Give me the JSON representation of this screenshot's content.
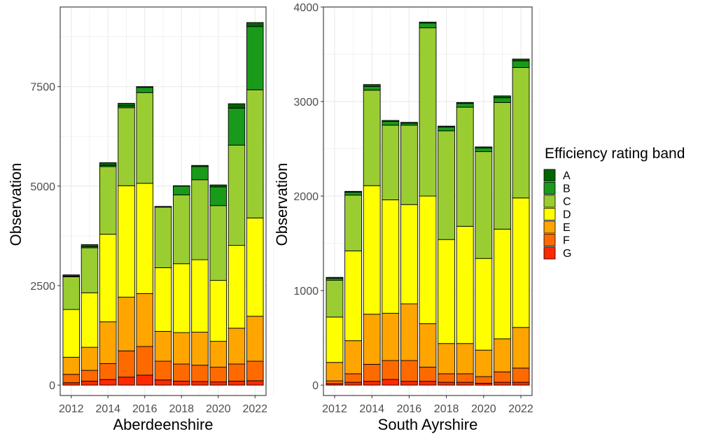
{
  "chart_data": [
    {
      "type": "bar",
      "stacked": true,
      "title": "",
      "xlabel": "Aberdeenshire",
      "ylabel": "Observation",
      "ylim": [
        0,
        9500
      ],
      "yticks": [
        0,
        2500,
        5000,
        7500
      ],
      "xticks": [
        2012,
        2014,
        2016,
        2018,
        2020,
        2022
      ],
      "grid": true,
      "categories": [
        2012,
        2013,
        2014,
        2015,
        2016,
        2017,
        2018,
        2019,
        2020,
        2021,
        2022
      ],
      "series": [
        {
          "name": "G",
          "values": [
            60,
            100,
            140,
            200,
            250,
            130,
            100,
            90,
            80,
            100,
            110
          ]
        },
        {
          "name": "F",
          "values": [
            210,
            270,
            400,
            660,
            720,
            470,
            430,
            410,
            370,
            430,
            490
          ]
        },
        {
          "name": "E",
          "values": [
            430,
            580,
            1050,
            1350,
            1330,
            750,
            790,
            830,
            650,
            900,
            1130
          ]
        },
        {
          "name": "D",
          "values": [
            1200,
            1370,
            2200,
            2800,
            2770,
            1600,
            1730,
            1820,
            1530,
            2080,
            2470
          ]
        },
        {
          "name": "C",
          "values": [
            820,
            1130,
            1700,
            1960,
            2280,
            1520,
            1730,
            2010,
            1880,
            2520,
            3220
          ]
        },
        {
          "name": "B",
          "values": [
            20,
            30,
            30,
            40,
            130,
            10,
            220,
            330,
            470,
            930,
            1590
          ]
        },
        {
          "name": "A",
          "values": [
            30,
            50,
            70,
            70,
            20,
            10,
            10,
            30,
            50,
            110,
            100
          ]
        }
      ]
    },
    {
      "type": "bar",
      "stacked": true,
      "title": "",
      "xlabel": "South Ayrshire",
      "ylabel": "Observation",
      "ylim": [
        0,
        4000
      ],
      "yticks": [
        0,
        1000,
        2000,
        3000,
        4000
      ],
      "xticks": [
        2012,
        2014,
        2016,
        2018,
        2020,
        2022
      ],
      "grid": true,
      "categories": [
        2012,
        2013,
        2014,
        2015,
        2016,
        2017,
        2018,
        2019,
        2020,
        2021,
        2022
      ],
      "series": [
        {
          "name": "G",
          "values": [
            15,
            30,
            40,
            60,
            40,
            40,
            30,
            30,
            20,
            30,
            30
          ]
        },
        {
          "name": "F",
          "values": [
            30,
            90,
            180,
            200,
            220,
            150,
            90,
            90,
            70,
            110,
            150
          ]
        },
        {
          "name": "E",
          "values": [
            195,
            350,
            530,
            500,
            600,
            460,
            320,
            320,
            280,
            350,
            430
          ]
        },
        {
          "name": "D",
          "values": [
            480,
            950,
            1360,
            1200,
            1050,
            1350,
            1100,
            1240,
            970,
            1160,
            1370
          ]
        },
        {
          "name": "C",
          "values": [
            390,
            590,
            1010,
            790,
            840,
            1780,
            1150,
            1260,
            1130,
            1340,
            1380
          ]
        },
        {
          "name": "B",
          "values": [
            20,
            30,
            40,
            40,
            20,
            50,
            40,
            40,
            40,
            50,
            70
          ]
        },
        {
          "name": "A",
          "values": [
            10,
            10,
            20,
            10,
            10,
            10,
            10,
            10,
            10,
            20,
            20
          ]
        }
      ]
    }
  ],
  "legend": {
    "title": "Efficiency rating band",
    "position": "right",
    "items": [
      {
        "label": "A",
        "color": "#006400"
      },
      {
        "label": "B",
        "color": "#1a9a1a"
      },
      {
        "label": "C",
        "color": "#9acd32"
      },
      {
        "label": "D",
        "color": "#ffff00"
      },
      {
        "label": "E",
        "color": "#ffa500"
      },
      {
        "label": "F",
        "color": "#ff6a00"
      },
      {
        "label": "G",
        "color": "#ff2a00"
      }
    ]
  },
  "colors": {
    "A": "#006400",
    "B": "#1a9a1a",
    "C": "#9acd32",
    "D": "#ffff00",
    "E": "#ffa500",
    "F": "#ff6a00",
    "G": "#ff2a00",
    "grid": "#ebebeb",
    "panel_border": "#333333"
  }
}
